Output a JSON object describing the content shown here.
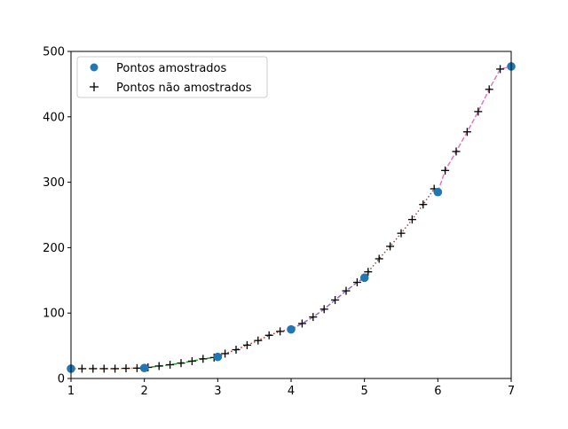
{
  "chart_data": {
    "type": "line",
    "title": "",
    "xlabel": "",
    "ylabel": "",
    "xlim": [
      1,
      7
    ],
    "ylim": [
      0,
      500
    ],
    "xticks": [
      1,
      2,
      3,
      4,
      5,
      6,
      7
    ],
    "yticks": [
      0,
      100,
      200,
      300,
      400,
      500
    ],
    "grid": false,
    "legend_position": "top-left",
    "legend": [
      {
        "label": "Pontos amostrados",
        "marker": "circle",
        "color": "#1f77b4"
      },
      {
        "label": "Pontos não amostrados",
        "marker": "plus",
        "color": "#000000"
      }
    ],
    "sampled_points": {
      "name": "Pontos amostrados",
      "x": [
        1,
        2,
        3,
        4,
        5,
        6,
        7
      ],
      "y": [
        15,
        16,
        33,
        75,
        154,
        285,
        477
      ]
    },
    "curves": [
      {
        "x_range": [
          1,
          2
        ],
        "color": "#ff7f0e",
        "dash": "dotted"
      },
      {
        "x_range": [
          2,
          3
        ],
        "color": "#2ca02c",
        "dash": "dashed"
      },
      {
        "x_range": [
          3,
          4
        ],
        "color": "#d62728",
        "dash": "dotted"
      },
      {
        "x_range": [
          4,
          5
        ],
        "color": "#9467bd",
        "dash": "dashed"
      },
      {
        "x_range": [
          5,
          6
        ],
        "color": "#8c564b",
        "dash": "dotted"
      },
      {
        "x_range": [
          6,
          7
        ],
        "color": "#e377c2",
        "dash": "dashed"
      }
    ],
    "unsampled_points": {
      "name": "Pontos não amostrados",
      "x": [
        1.15,
        1.3,
        1.45,
        1.6,
        1.75,
        1.9,
        2.05,
        2.2,
        2.35,
        2.5,
        2.65,
        2.8,
        2.95,
        3.1,
        3.25,
        3.4,
        3.55,
        3.7,
        3.85,
        4.0,
        4.15,
        4.3,
        4.45,
        4.6,
        4.75,
        4.9,
        5.05,
        5.2,
        5.35,
        5.5,
        5.65,
        5.8,
        5.95,
        6.1,
        6.25,
        6.4,
        6.55,
        6.7,
        6.85,
        7.0
      ],
      "y": [
        15,
        15,
        15,
        15,
        15.5,
        15.8,
        17,
        19,
        21,
        23.5,
        26.5,
        30,
        32,
        38,
        44,
        51,
        58,
        66,
        72,
        75,
        84,
        94,
        106,
        120,
        134,
        147,
        163,
        183,
        202,
        222,
        243,
        266,
        290,
        318,
        347,
        377,
        408,
        442,
        473,
        477
      ]
    }
  }
}
